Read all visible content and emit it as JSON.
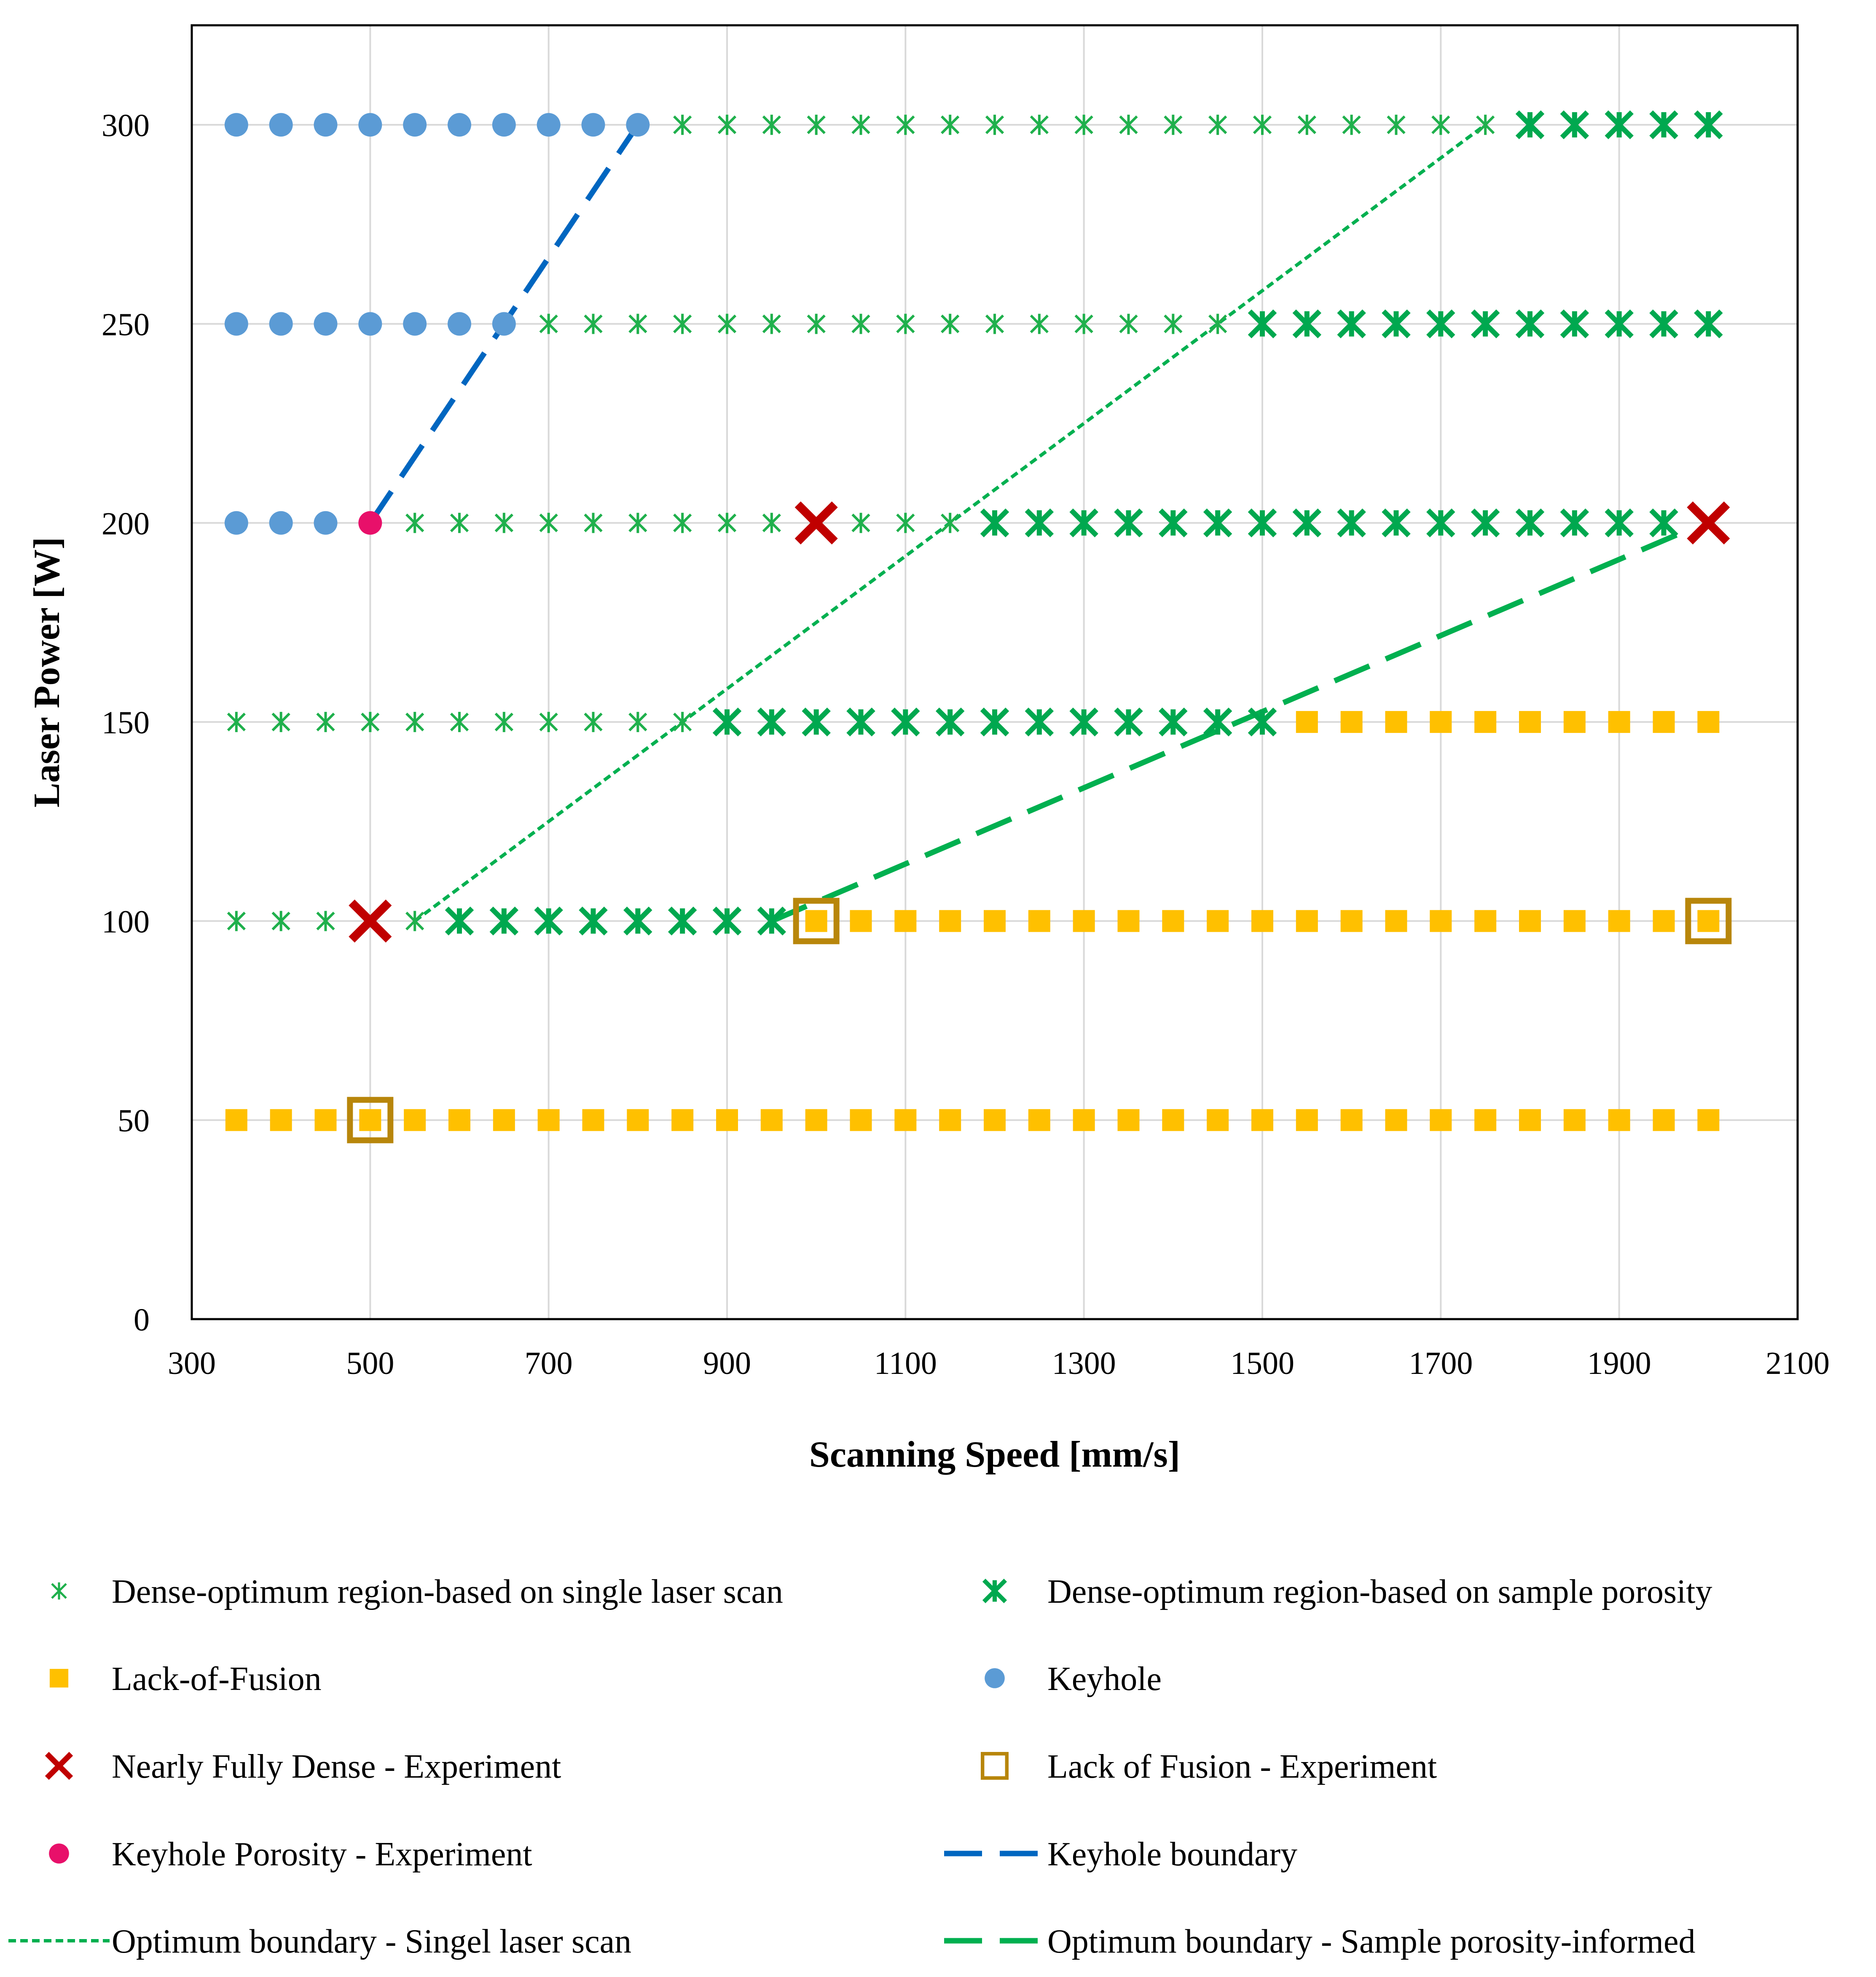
{
  "chart_data": {
    "type": "scatter",
    "xlabel": "Scanning Speed [mm/s]",
    "ylabel": "Laser Power [W]",
    "xlim": [
      300,
      2100
    ],
    "ylim": [
      0,
      325
    ],
    "xticks": [
      300,
      500,
      700,
      900,
      1100,
      1300,
      1500,
      1700,
      1900,
      2100
    ],
    "yticks": [
      0,
      50,
      100,
      150,
      200,
      250,
      300
    ],
    "grid": true,
    "legend_position": "bottom",
    "colors": {
      "dense_single": "#1fb04c",
      "dense_porosity": "#00a84f",
      "lack_of_fusion": "#ffc000",
      "keyhole": "#5b9bd5",
      "nearly_dense_exp": "#c00000",
      "lof_exp": "#b8860b",
      "keyhole_exp": "#e8106a",
      "keyhole_boundary": "#0066c0",
      "opt_single": "#00b050",
      "opt_porosity": "#00b050"
    },
    "series": [
      {
        "key": "dense_single",
        "name": "Dense-optimum region-based on single laser scan",
        "marker": "asterisk-small",
        "points": [
          [
            850,
            300
          ],
          [
            900,
            300
          ],
          [
            950,
            300
          ],
          [
            1000,
            300
          ],
          [
            1050,
            300
          ],
          [
            1100,
            300
          ],
          [
            1150,
            300
          ],
          [
            1200,
            300
          ],
          [
            1250,
            300
          ],
          [
            1300,
            300
          ],
          [
            1350,
            300
          ],
          [
            1400,
            300
          ],
          [
            1450,
            300
          ],
          [
            1500,
            300
          ],
          [
            1550,
            300
          ],
          [
            1600,
            300
          ],
          [
            1650,
            300
          ],
          [
            1700,
            300
          ],
          [
            1750,
            300
          ],
          [
            700,
            250
          ],
          [
            750,
            250
          ],
          [
            800,
            250
          ],
          [
            850,
            250
          ],
          [
            900,
            250
          ],
          [
            950,
            250
          ],
          [
            1000,
            250
          ],
          [
            1050,
            250
          ],
          [
            1100,
            250
          ],
          [
            1150,
            250
          ],
          [
            1200,
            250
          ],
          [
            1250,
            250
          ],
          [
            1300,
            250
          ],
          [
            1350,
            250
          ],
          [
            1400,
            250
          ],
          [
            1450,
            250
          ],
          [
            550,
            200
          ],
          [
            600,
            200
          ],
          [
            650,
            200
          ],
          [
            700,
            200
          ],
          [
            750,
            200
          ],
          [
            800,
            200
          ],
          [
            850,
            200
          ],
          [
            900,
            200
          ],
          [
            950,
            200
          ],
          [
            1050,
            200
          ],
          [
            1100,
            200
          ],
          [
            1150,
            200
          ],
          [
            350,
            150
          ],
          [
            400,
            150
          ],
          [
            450,
            150
          ],
          [
            500,
            150
          ],
          [
            550,
            150
          ],
          [
            600,
            150
          ],
          [
            650,
            150
          ],
          [
            700,
            150
          ],
          [
            750,
            150
          ],
          [
            800,
            150
          ],
          [
            850,
            150
          ],
          [
            350,
            100
          ],
          [
            400,
            100
          ],
          [
            450,
            100
          ],
          [
            550,
            100
          ]
        ]
      },
      {
        "key": "dense_porosity",
        "name": "Dense-optimum region-based on sample porosity",
        "marker": "asterisk-large",
        "points": [
          [
            1800,
            300
          ],
          [
            1850,
            300
          ],
          [
            1900,
            300
          ],
          [
            1950,
            300
          ],
          [
            2000,
            300
          ],
          [
            1500,
            250
          ],
          [
            1550,
            250
          ],
          [
            1600,
            250
          ],
          [
            1650,
            250
          ],
          [
            1700,
            250
          ],
          [
            1750,
            250
          ],
          [
            1800,
            250
          ],
          [
            1850,
            250
          ],
          [
            1900,
            250
          ],
          [
            1950,
            250
          ],
          [
            2000,
            250
          ],
          [
            1200,
            200
          ],
          [
            1250,
            200
          ],
          [
            1300,
            200
          ],
          [
            1350,
            200
          ],
          [
            1400,
            200
          ],
          [
            1450,
            200
          ],
          [
            1500,
            200
          ],
          [
            1550,
            200
          ],
          [
            1600,
            200
          ],
          [
            1650,
            200
          ],
          [
            1700,
            200
          ],
          [
            1750,
            200
          ],
          [
            1800,
            200
          ],
          [
            1850,
            200
          ],
          [
            1900,
            200
          ],
          [
            1950,
            200
          ],
          [
            900,
            150
          ],
          [
            950,
            150
          ],
          [
            1000,
            150
          ],
          [
            1050,
            150
          ],
          [
            1100,
            150
          ],
          [
            1150,
            150
          ],
          [
            1200,
            150
          ],
          [
            1250,
            150
          ],
          [
            1300,
            150
          ],
          [
            1350,
            150
          ],
          [
            1400,
            150
          ],
          [
            1450,
            150
          ],
          [
            1500,
            150
          ],
          [
            600,
            100
          ],
          [
            650,
            100
          ],
          [
            700,
            100
          ],
          [
            750,
            100
          ],
          [
            800,
            100
          ],
          [
            850,
            100
          ],
          [
            900,
            100
          ],
          [
            950,
            100
          ]
        ]
      },
      {
        "key": "lack_of_fusion",
        "name": "Lack-of-Fusion",
        "marker": "square",
        "points": [
          [
            1550,
            150
          ],
          [
            1600,
            150
          ],
          [
            1650,
            150
          ],
          [
            1700,
            150
          ],
          [
            1750,
            150
          ],
          [
            1800,
            150
          ],
          [
            1850,
            150
          ],
          [
            1900,
            150
          ],
          [
            1950,
            150
          ],
          [
            2000,
            150
          ],
          [
            1000,
            100
          ],
          [
            1050,
            100
          ],
          [
            1100,
            100
          ],
          [
            1150,
            100
          ],
          [
            1200,
            100
          ],
          [
            1250,
            100
          ],
          [
            1300,
            100
          ],
          [
            1350,
            100
          ],
          [
            1400,
            100
          ],
          [
            1450,
            100
          ],
          [
            1500,
            100
          ],
          [
            1550,
            100
          ],
          [
            1600,
            100
          ],
          [
            1650,
            100
          ],
          [
            1700,
            100
          ],
          [
            1750,
            100
          ],
          [
            1800,
            100
          ],
          [
            1850,
            100
          ],
          [
            1900,
            100
          ],
          [
            1950,
            100
          ],
          [
            2000,
            100
          ],
          [
            350,
            50
          ],
          [
            400,
            50
          ],
          [
            450,
            50
          ],
          [
            500,
            50
          ],
          [
            550,
            50
          ],
          [
            600,
            50
          ],
          [
            650,
            50
          ],
          [
            700,
            50
          ],
          [
            750,
            50
          ],
          [
            800,
            50
          ],
          [
            850,
            50
          ],
          [
            900,
            50
          ],
          [
            950,
            50
          ],
          [
            1000,
            50
          ],
          [
            1050,
            50
          ],
          [
            1100,
            50
          ],
          [
            1150,
            50
          ],
          [
            1200,
            50
          ],
          [
            1250,
            50
          ],
          [
            1300,
            50
          ],
          [
            1350,
            50
          ],
          [
            1400,
            50
          ],
          [
            1450,
            50
          ],
          [
            1500,
            50
          ],
          [
            1550,
            50
          ],
          [
            1600,
            50
          ],
          [
            1650,
            50
          ],
          [
            1700,
            50
          ],
          [
            1750,
            50
          ],
          [
            1800,
            50
          ],
          [
            1850,
            50
          ],
          [
            1900,
            50
          ],
          [
            1950,
            50
          ],
          [
            2000,
            50
          ]
        ]
      },
      {
        "key": "keyhole",
        "name": "Keyhole",
        "marker": "circle",
        "points": [
          [
            350,
            300
          ],
          [
            400,
            300
          ],
          [
            450,
            300
          ],
          [
            500,
            300
          ],
          [
            550,
            300
          ],
          [
            600,
            300
          ],
          [
            650,
            300
          ],
          [
            700,
            300
          ],
          [
            750,
            300
          ],
          [
            800,
            300
          ],
          [
            350,
            250
          ],
          [
            400,
            250
          ],
          [
            450,
            250
          ],
          [
            500,
            250
          ],
          [
            550,
            250
          ],
          [
            600,
            250
          ],
          [
            650,
            250
          ],
          [
            350,
            200
          ],
          [
            400,
            200
          ],
          [
            450,
            200
          ]
        ]
      },
      {
        "key": "nearly_dense_exp",
        "name": "Nearly Fully Dense - Experiment",
        "marker": "x-bold",
        "points": [
          [
            500,
            100
          ],
          [
            1000,
            200
          ],
          [
            2000,
            200
          ]
        ]
      },
      {
        "key": "lof_exp",
        "name": "Lack of Fusion - Experiment",
        "marker": "square-hollow",
        "points": [
          [
            500,
            50
          ],
          [
            1000,
            100
          ],
          [
            2000,
            100
          ]
        ]
      },
      {
        "key": "keyhole_exp",
        "name": "Keyhole Porosity - Experiment",
        "marker": "circle",
        "points": [
          [
            500,
            200
          ]
        ]
      }
    ],
    "lines": [
      {
        "key": "keyhole_boundary",
        "name": "Keyhole boundary",
        "style": "long-dash",
        "points": [
          [
            500,
            200
          ],
          [
            800,
            300
          ]
        ]
      },
      {
        "key": "opt_single",
        "name": "Optimum boundary - Singel laser scan",
        "style": "short-dash",
        "points": [
          [
            550,
            100
          ],
          [
            1750,
            300
          ]
        ]
      },
      {
        "key": "opt_porosity",
        "name": "Optimum boundary - Sample porosity-informed",
        "style": "long-dash",
        "points": [
          [
            950,
            100
          ],
          [
            1975,
            198
          ]
        ]
      }
    ]
  }
}
